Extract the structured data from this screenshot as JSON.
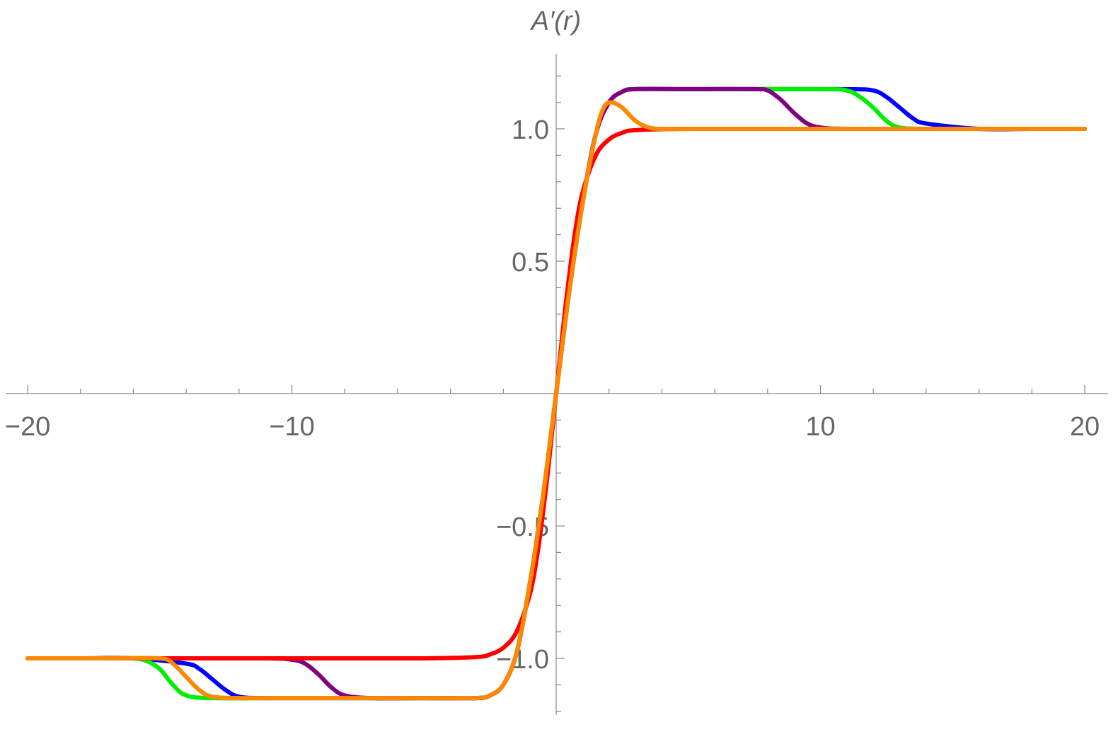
{
  "chart_data": {
    "type": "line",
    "title": "",
    "xlabel": "",
    "ylabel": "A′(r)",
    "xlim": [
      -20.2,
      20.2
    ],
    "ylim": [
      -1.22,
      1.27
    ],
    "x_ticks_major": [
      -20,
      -10,
      10,
      20
    ],
    "x_tick_labels": [
      "−20",
      "−10",
      "10",
      "20"
    ],
    "x_ticks_minor_step": 2,
    "y_ticks_major": [
      -1.0,
      -0.5,
      0.5,
      1.0
    ],
    "y_tick_labels": [
      "−1.0",
      "−0.5",
      "0.5",
      "1.0"
    ],
    "y_ticks_minor_step": 0.1,
    "grid": false,
    "legend": "none",
    "series": [
      {
        "color": "#0000ff",
        "x": [
          -20,
          -18,
          -16,
          -14,
          -13.5,
          -13,
          -12.5,
          -12,
          -11,
          -8,
          -5,
          -3,
          -2.5,
          -2,
          -1.5,
          -1,
          -0.5,
          0,
          0.5,
          1,
          1.5,
          2,
          2.5,
          3,
          5,
          8,
          11,
          12,
          12.5,
          13,
          13.5,
          14,
          16,
          18,
          20
        ],
        "y": [
          -1.0,
          -1.0,
          -1.0,
          -1.02,
          -1.04,
          -1.08,
          -1.12,
          -1.145,
          -1.15,
          -1.15,
          -1.15,
          -1.15,
          -1.14,
          -1.1,
          -0.98,
          -0.72,
          -0.39,
          0.0,
          0.39,
          0.72,
          0.98,
          1.1,
          1.14,
          1.15,
          1.15,
          1.15,
          1.15,
          1.145,
          1.12,
          1.08,
          1.04,
          1.02,
          1.0,
          1.0,
          1.0
        ]
      },
      {
        "color": "#00ee00",
        "x": [
          -20,
          -17,
          -16,
          -15.5,
          -15,
          -14.5,
          -14,
          -13,
          -10,
          -5,
          -3,
          -2.5,
          -2,
          -1.5,
          -1,
          -0.5,
          0,
          0.5,
          1,
          1.5,
          2,
          2.5,
          3,
          5,
          10,
          11,
          11.5,
          12,
          12.5,
          13,
          14,
          17,
          20
        ],
        "y": [
          -1.0,
          -1.0,
          -1.0,
          -1.01,
          -1.04,
          -1.1,
          -1.14,
          -1.15,
          -1.15,
          -1.15,
          -1.15,
          -1.14,
          -1.1,
          -0.98,
          -0.72,
          -0.39,
          0.0,
          0.39,
          0.72,
          0.98,
          1.1,
          1.14,
          1.15,
          1.15,
          1.15,
          1.145,
          1.12,
          1.08,
          1.03,
          1.005,
          1.0,
          1.0,
          1.0
        ]
      },
      {
        "color": "#800080",
        "x": [
          -20,
          -15,
          -11,
          -10,
          -9.5,
          -9,
          -8.5,
          -8,
          -7,
          -5,
          -3,
          -2.5,
          -2,
          -1.5,
          -1,
          -0.5,
          0,
          0.5,
          1,
          1.5,
          2,
          2.5,
          3,
          5,
          7.5,
          8,
          8.5,
          9,
          9.5,
          10,
          11,
          15,
          20
        ],
        "y": [
          -1.0,
          -1.0,
          -1.0,
          -1.005,
          -1.02,
          -1.06,
          -1.11,
          -1.14,
          -1.15,
          -1.15,
          -1.15,
          -1.14,
          -1.1,
          -0.98,
          -0.72,
          -0.39,
          0.0,
          0.39,
          0.72,
          0.98,
          1.1,
          1.14,
          1.15,
          1.15,
          1.15,
          1.145,
          1.11,
          1.06,
          1.02,
          1.005,
          1.0,
          1.0,
          1.0
        ]
      },
      {
        "color": "#ff0000",
        "x": [
          -20,
          -10,
          -5,
          -3,
          -2.5,
          -2,
          -1.5,
          -1,
          -0.7,
          -0.4,
          -0.2,
          0,
          0.2,
          0.4,
          0.7,
          1,
          1.5,
          2,
          2.5,
          3,
          5,
          10,
          20
        ],
        "y": [
          -1.0,
          -1.0,
          -1.0,
          -0.995,
          -0.985,
          -0.96,
          -0.9,
          -0.76,
          -0.6,
          -0.37,
          -0.19,
          0.0,
          0.19,
          0.37,
          0.6,
          0.76,
          0.9,
          0.96,
          0.985,
          0.995,
          1.0,
          1.0,
          1.0
        ]
      },
      {
        "color": "#ff8800",
        "x": [
          -20,
          -17,
          -15,
          -14.5,
          -14,
          -13.5,
          -13,
          -12,
          -10,
          -5,
          -3,
          -2.5,
          -2,
          -1.5,
          -1,
          -0.5,
          0,
          0.5,
          1,
          1.5,
          1.8,
          2.1,
          2.5,
          3,
          3.5,
          4,
          5,
          10,
          20
        ],
        "y": [
          -1.0,
          -1.0,
          -1.0,
          -1.02,
          -1.07,
          -1.12,
          -1.145,
          -1.15,
          -1.15,
          -1.15,
          -1.15,
          -1.14,
          -1.1,
          -0.98,
          -0.72,
          -0.39,
          0.0,
          0.39,
          0.72,
          0.98,
          1.08,
          1.1,
          1.08,
          1.03,
          1.005,
          1.0,
          1.0,
          1.0,
          1.0
        ]
      }
    ]
  }
}
